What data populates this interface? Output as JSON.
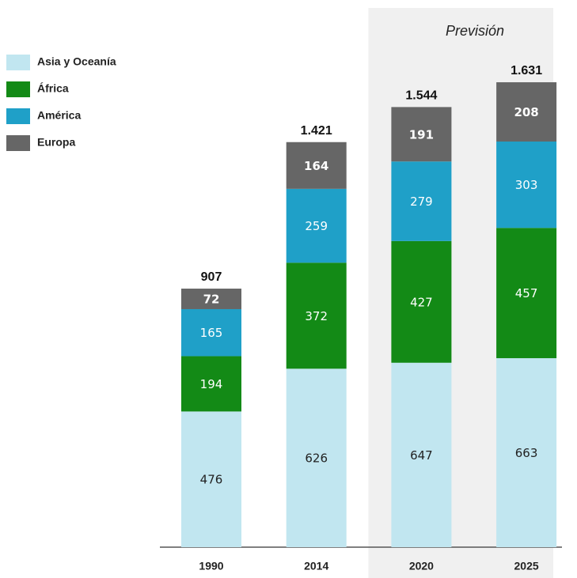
{
  "chart_data": {
    "type": "stacked-bar",
    "annotation": "Previsión",
    "forecast_categories": [
      "2020",
      "2025"
    ],
    "categories": [
      "1990",
      "2014",
      "2020",
      "2025"
    ],
    "series": [
      {
        "name": "Asia y Oceanía",
        "color": "#c1e6f0",
        "values": [
          476,
          626,
          647,
          663
        ]
      },
      {
        "name": "África",
        "color": "#138a16",
        "values": [
          194,
          372,
          427,
          457
        ]
      },
      {
        "name": "América",
        "color": "#1fa0c8",
        "values": [
          165,
          259,
          279,
          303
        ]
      },
      {
        "name": "Europa",
        "color": "#666666",
        "values": [
          72,
          164,
          191,
          208
        ]
      }
    ],
    "totals": {
      "values": [
        907,
        1421,
        1544,
        1631
      ],
      "value_labels": [
        "907",
        "1.421",
        "1.544",
        "1.631"
      ]
    },
    "legend": "top-left"
  }
}
